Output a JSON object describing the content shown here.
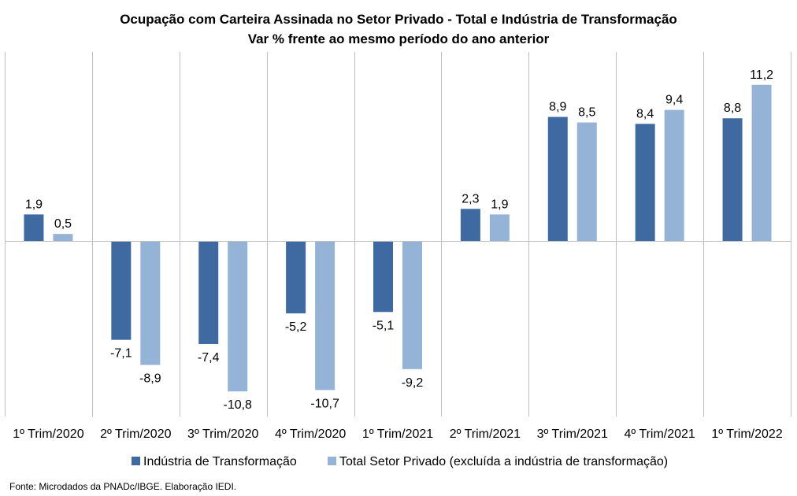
{
  "chart_data": {
    "type": "bar",
    "title": "Ocupação com Carteira Assinada no Setor Privado - Total e Indústria de Transformação",
    "subtitle": "Var % frente ao mesmo período do ano anterior",
    "categories": [
      "1º Trim/2020",
      "2º Trim/2020",
      "3º Trim/2020",
      "4º Trim/2020",
      "1º Trim/2021",
      "2º Trim/2021",
      "3º Trim/2021",
      "4º Trim/2021",
      "1º Trim/2022"
    ],
    "series": [
      {
        "name": "Indústria de Transformação",
        "color": "#3f6aa1",
        "values": [
          1.9,
          -7.1,
          -7.4,
          -5.2,
          -5.1,
          2.3,
          8.9,
          8.4,
          8.8
        ],
        "labels": [
          "1,9",
          "-7,1",
          "-7,4",
          "-5,2",
          "-5,1",
          "2,3",
          "8,9",
          "8,4",
          "8,8"
        ]
      },
      {
        "name": "Total Setor Privado (excluída a indústria de transformação)",
        "color": "#95b3d7",
        "values": [
          0.5,
          -8.9,
          -10.8,
          -10.7,
          -9.2,
          1.9,
          8.5,
          9.4,
          11.2
        ],
        "labels": [
          "0,5",
          "-8,9",
          "-10,8",
          "-10,7",
          "-9,2",
          "1,9",
          "8,5",
          "9,4",
          "11,2"
        ]
      }
    ],
    "xlabel": "",
    "ylabel": "",
    "ylim": [
      -12,
      13
    ],
    "grid": "vertical separators",
    "legend_position": "bottom"
  },
  "source_note": "Fonte: Microdados da PNADc/IBGE. Elaboração IEDI."
}
